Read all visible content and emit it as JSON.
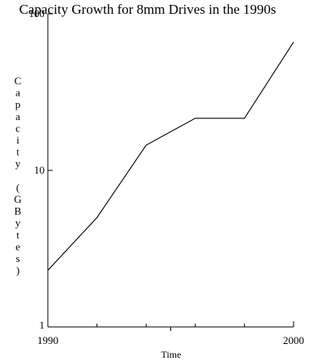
{
  "chart_data": {
    "type": "line",
    "title": "Capacity Growth for 8mm Drives in the 1990s",
    "xlabel": "Time",
    "ylabel": "Capacity (GBytes)",
    "x_scale": "linear",
    "y_scale": "log",
    "xlim": [
      1990,
      2000
    ],
    "ylim": [
      1,
      100
    ],
    "x_tick_labels": [
      "1990",
      "2000"
    ],
    "y_tick_labels": [
      "1",
      "10",
      "100"
    ],
    "grid": false,
    "series": [
      {
        "x": [
          1990,
          1992,
          1994,
          1996,
          1998,
          2000
        ],
        "values": [
          2.3,
          5,
          14.5,
          21.5,
          21.5,
          66
        ]
      }
    ]
  }
}
